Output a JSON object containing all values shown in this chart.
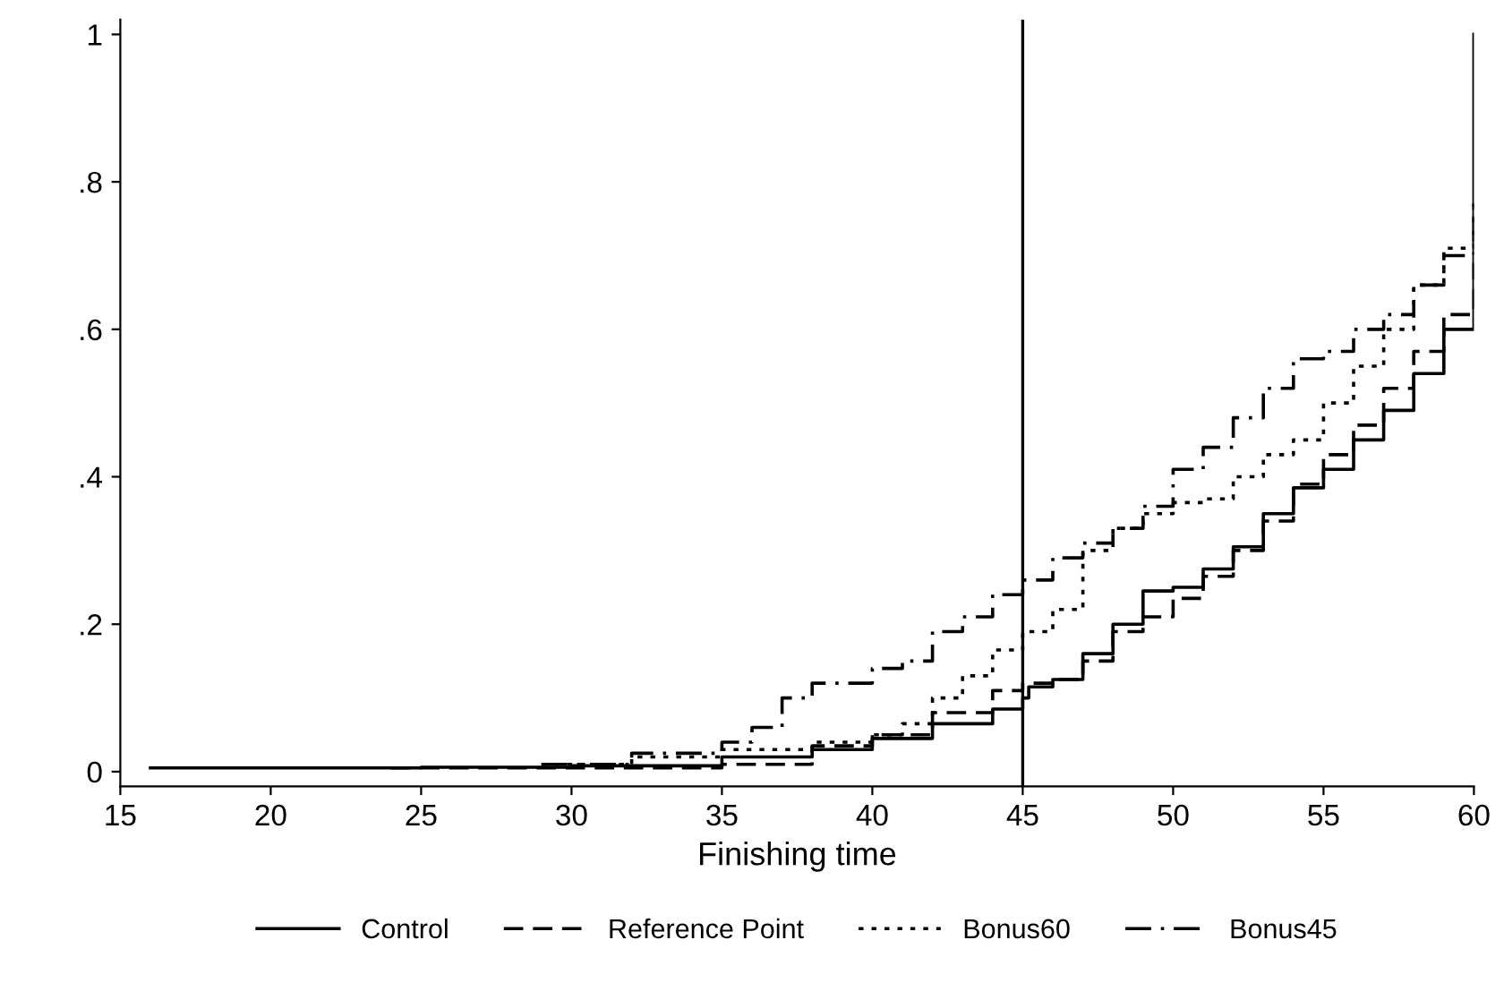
{
  "chart_data": {
    "type": "step",
    "xlabel": "Finishing time",
    "xlim": [
      15,
      60
    ],
    "xticks": [
      15,
      20,
      25,
      30,
      35,
      40,
      45,
      50,
      55,
      60
    ],
    "ylim": [
      -0.02,
      1.02
    ],
    "yticks": [
      0,
      {
        "value": 0.2,
        "label": ".2"
      },
      {
        "value": 0.4,
        "label": ".4"
      },
      {
        "value": 0.6,
        "label": ".6"
      },
      {
        "value": 0.8,
        "label": ".8"
      },
      1
    ],
    "grid": false,
    "legend": "bottom",
    "marker": "none",
    "ref_lines": [
      {
        "axis": "x",
        "value": 45,
        "color": "#000000"
      }
    ],
    "series": [
      {
        "name": "Control",
        "color": "#000000",
        "line_style": "solid",
        "x": [
          16,
          25,
          30,
          35,
          38,
          40,
          42,
          44,
          45,
          45.2,
          46,
          47,
          48,
          49,
          50,
          51,
          52,
          53,
          54,
          55,
          56,
          57,
          58,
          59,
          60,
          60
        ],
        "values": [
          0.005,
          0.006,
          0.008,
          0.02,
          0.03,
          0.045,
          0.065,
          0.085,
          0.1,
          0.115,
          0.125,
          0.16,
          0.2,
          0.245,
          0.25,
          0.275,
          0.305,
          0.35,
          0.385,
          0.41,
          0.45,
          0.49,
          0.54,
          0.6,
          0.66,
          1.0
        ]
      },
      {
        "name": "Reference Point",
        "color": "#000000",
        "line_style": "dashed",
        "x": [
          24,
          30,
          32,
          35,
          38,
          40,
          42,
          44,
          45,
          46,
          47,
          48,
          49,
          50,
          51,
          52,
          53,
          54,
          55,
          56,
          57,
          58,
          59,
          60
        ],
        "values": [
          0.005,
          0.005,
          0.005,
          0.01,
          0.035,
          0.05,
          0.08,
          0.11,
          0.12,
          0.125,
          0.15,
          0.19,
          0.21,
          0.235,
          0.265,
          0.3,
          0.34,
          0.39,
          0.43,
          0.47,
          0.52,
          0.57,
          0.62,
          0.69
        ]
      },
      {
        "name": "Bonus60",
        "color": "#000000",
        "line_style": "dotted",
        "x": [
          29,
          32,
          35,
          38,
          40,
          41,
          42,
          43,
          44,
          45,
          46,
          47,
          48,
          49,
          50,
          51,
          52,
          53,
          54,
          55,
          56,
          57,
          58,
          59,
          60
        ],
        "values": [
          0.01,
          0.02,
          0.03,
          0.04,
          0.05,
          0.065,
          0.1,
          0.13,
          0.165,
          0.19,
          0.22,
          0.3,
          0.33,
          0.35,
          0.365,
          0.37,
          0.4,
          0.43,
          0.45,
          0.5,
          0.55,
          0.6,
          0.66,
          0.71,
          0.77
        ]
      },
      {
        "name": "Bonus45",
        "color": "#000000",
        "line_style": "dashdot",
        "x": [
          29,
          32,
          35,
          36,
          37,
          38,
          40,
          41,
          42,
          43,
          44,
          45,
          46,
          47,
          48,
          49,
          50,
          51,
          52,
          53,
          54,
          55,
          56,
          57,
          58,
          59,
          60
        ],
        "values": [
          0.01,
          0.025,
          0.04,
          0.06,
          0.1,
          0.12,
          0.14,
          0.15,
          0.19,
          0.21,
          0.24,
          0.26,
          0.29,
          0.31,
          0.33,
          0.36,
          0.41,
          0.44,
          0.48,
          0.52,
          0.56,
          0.57,
          0.6,
          0.62,
          0.66,
          0.7,
          0.78
        ]
      }
    ]
  }
}
